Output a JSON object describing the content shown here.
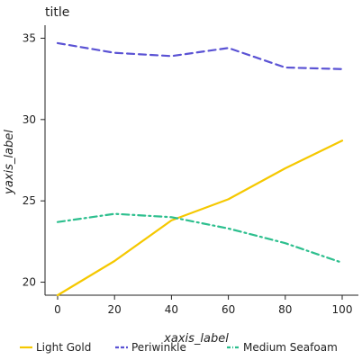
{
  "chart_data": {
    "type": "line",
    "title": "title",
    "xlabel": "xaxis_label",
    "ylabel": "yaxis_label",
    "x": [
      0,
      20,
      40,
      60,
      80,
      100
    ],
    "xlim": [
      0,
      100
    ],
    "ylim": [
      19.2,
      35.8
    ],
    "xticks": [
      "0",
      "20",
      "40",
      "60",
      "80",
      "100"
    ],
    "yticks": [
      "20",
      "25",
      "30",
      "35"
    ],
    "grid": false,
    "legend_position": "bottom",
    "series": [
      {
        "name": "Light Gold",
        "color": "#f5c800",
        "dash": "solid",
        "values": [
          19.2,
          21.3,
          23.8,
          25.1,
          27.0,
          28.7
        ]
      },
      {
        "name": "Periwinkle",
        "color": "#5a52d4",
        "dash": "dashed",
        "values": [
          34.7,
          34.1,
          33.9,
          34.4,
          33.2,
          33.1
        ]
      },
      {
        "name": "Medium Seafoam",
        "color": "#2dbf8e",
        "dash": "dashdot",
        "values": [
          23.7,
          24.2,
          24.0,
          23.3,
          22.4,
          21.2
        ]
      }
    ]
  }
}
